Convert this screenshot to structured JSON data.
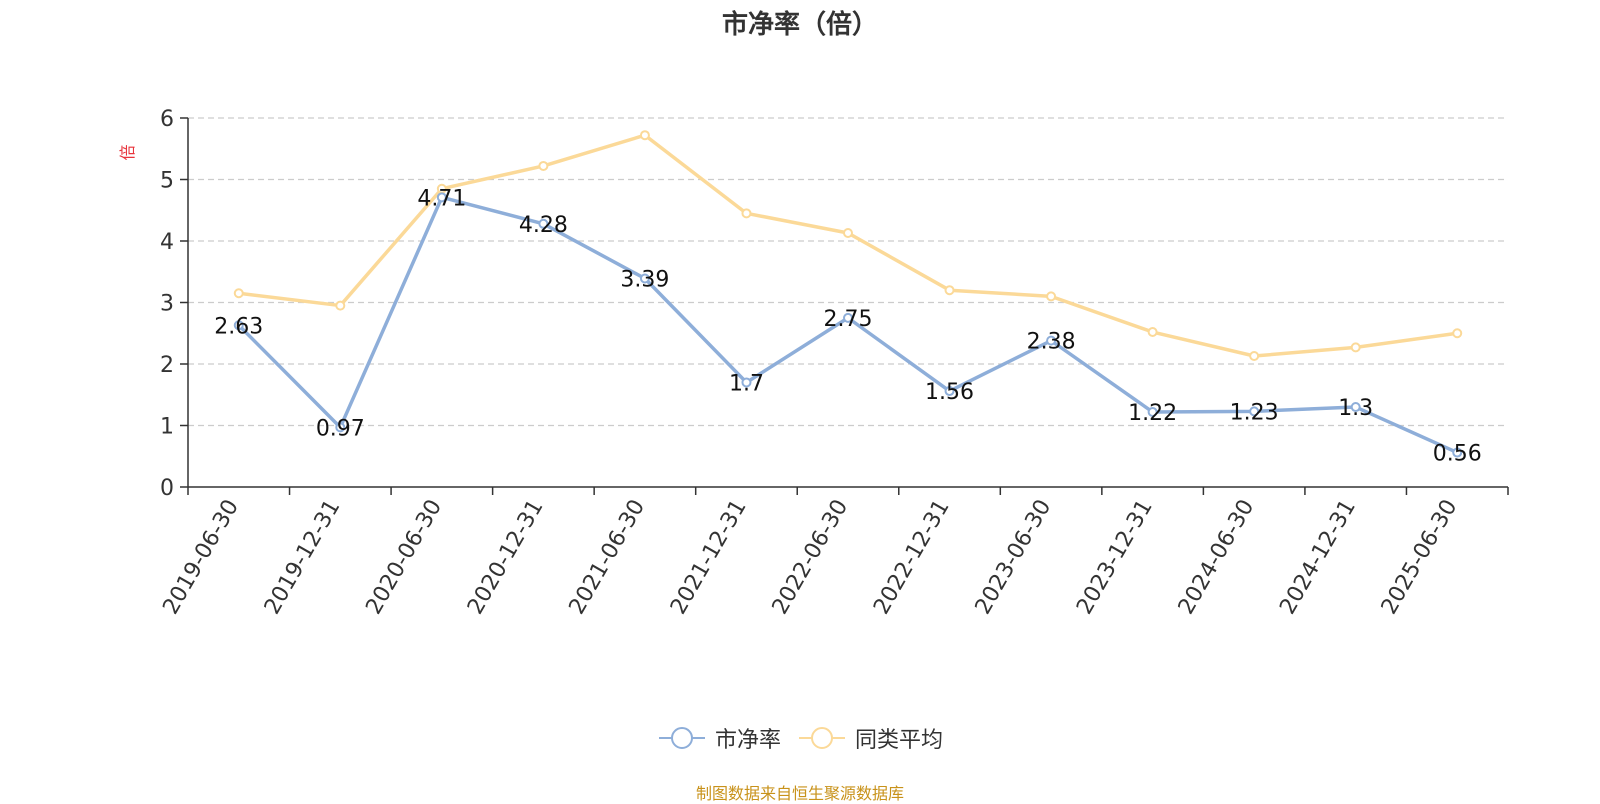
{
  "chart_data": {
    "type": "line",
    "title": "市净率（倍）",
    "ylabel": "倍",
    "xlabel": "",
    "categories": [
      "2019-06-30",
      "2019-12-31",
      "2020-06-30",
      "2020-12-31",
      "2021-06-30",
      "2021-12-31",
      "2022-06-30",
      "2022-12-31",
      "2023-06-30",
      "2023-12-31",
      "2024-06-30",
      "2024-12-31",
      "2025-06-30"
    ],
    "ylim": [
      0,
      6
    ],
    "yticks": [
      0,
      1,
      2,
      3,
      4,
      5,
      6
    ],
    "grid": true,
    "legend_position": "bottom",
    "series": [
      {
        "name": "市净率",
        "color": "#8eaed9",
        "values": [
          2.63,
          0.97,
          4.71,
          4.28,
          3.39,
          1.7,
          2.75,
          1.56,
          2.38,
          1.22,
          1.23,
          1.3,
          0.56
        ],
        "data_labels": [
          "2.63",
          "0.97",
          "4.71",
          "4.28",
          "3.39",
          "1.7",
          "2.75",
          "1.56",
          "2.38",
          "1.22",
          "1.23",
          "1.3",
          "0.56"
        ]
      },
      {
        "name": "同类平均",
        "color": "#fbd998",
        "values": [
          3.15,
          2.95,
          4.85,
          5.22,
          5.72,
          4.45,
          4.13,
          3.2,
          3.1,
          2.52,
          2.13,
          2.27,
          2.5
        ]
      }
    ],
    "ylabel_color": "#e8343c",
    "source_note": "制图数据来自恒生聚源数据库"
  }
}
